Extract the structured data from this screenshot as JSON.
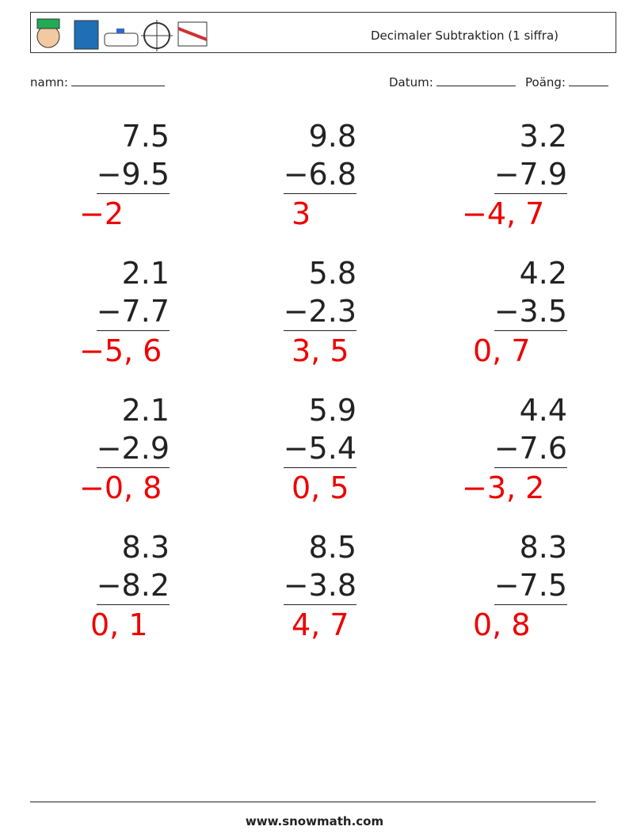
{
  "header": {
    "title": "Decimaler Subtraktion (1 siffra)"
  },
  "fields": {
    "name": "namn:",
    "date": "Datum:",
    "score": "Poäng:"
  },
  "problems": [
    {
      "top": "7.5",
      "bottom": "−9.5",
      "answer": "−2"
    },
    {
      "top": "9.8",
      "bottom": "−6.8",
      "answer": "3"
    },
    {
      "top": "3.2",
      "bottom": "−7.9",
      "answer": "−4, 7"
    },
    {
      "top": "2.1",
      "bottom": "−7.7",
      "answer": "−5, 6"
    },
    {
      "top": "5.8",
      "bottom": "−2.3",
      "answer": "3, 5"
    },
    {
      "top": "4.2",
      "bottom": "−3.5",
      "answer": "0, 7"
    },
    {
      "top": "2.1",
      "bottom": "−2.9",
      "answer": "−0, 8"
    },
    {
      "top": "5.9",
      "bottom": "−5.4",
      "answer": "0, 5"
    },
    {
      "top": "4.4",
      "bottom": "−7.6",
      "answer": "−3, 2"
    },
    {
      "top": "8.3",
      "bottom": "−8.2",
      "answer": "0, 1"
    },
    {
      "top": "8.5",
      "bottom": "−3.8",
      "answer": "4, 7"
    },
    {
      "top": "8.3",
      "bottom": "−7.5",
      "answer": "0, 8"
    }
  ],
  "footer": {
    "url": "www.snowmath.com"
  }
}
